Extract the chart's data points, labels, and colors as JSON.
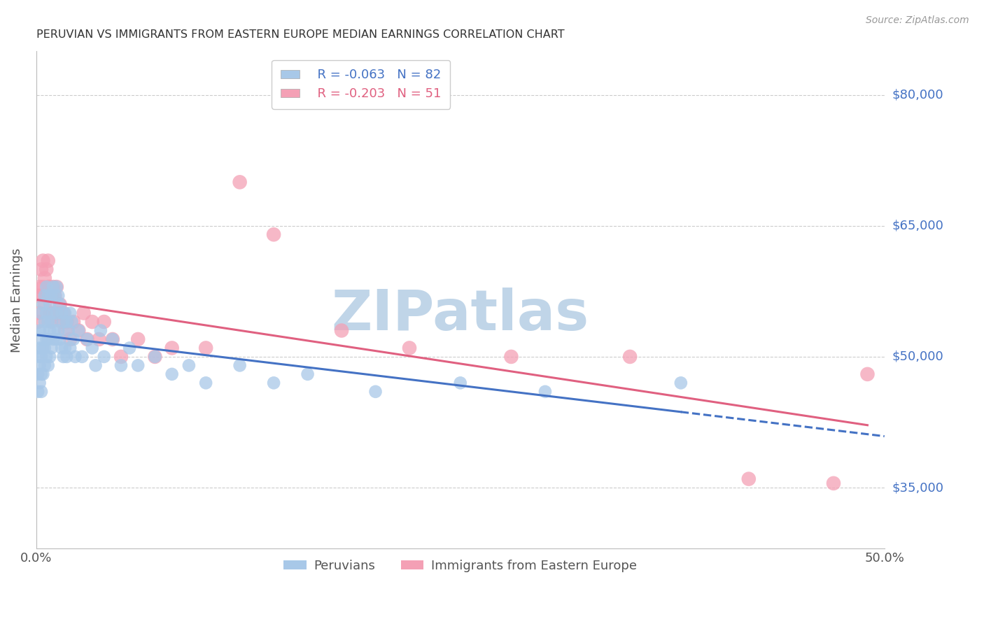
{
  "title": "PERUVIAN VS IMMIGRANTS FROM EASTERN EUROPE MEDIAN EARNINGS CORRELATION CHART",
  "source": "Source: ZipAtlas.com",
  "ylabel": "Median Earnings",
  "yticks": [
    35000,
    50000,
    65000,
    80000
  ],
  "ytick_labels": [
    "$35,000",
    "$50,000",
    "$65,000",
    "$80,000"
  ],
  "series": [
    {
      "name": "Peruvians",
      "R": -0.063,
      "N": 82,
      "color": "#a8c8e8",
      "line_color": "#4472c4",
      "x": [
        0.001,
        0.001,
        0.001,
        0.002,
        0.002,
        0.002,
        0.002,
        0.003,
        0.003,
        0.003,
        0.003,
        0.003,
        0.004,
        0.004,
        0.004,
        0.004,
        0.005,
        0.005,
        0.005,
        0.005,
        0.006,
        0.006,
        0.006,
        0.006,
        0.007,
        0.007,
        0.007,
        0.007,
        0.008,
        0.008,
        0.008,
        0.009,
        0.009,
        0.009,
        0.01,
        0.01,
        0.01,
        0.011,
        0.011,
        0.012,
        0.012,
        0.012,
        0.013,
        0.013,
        0.014,
        0.014,
        0.015,
        0.015,
        0.016,
        0.016,
        0.017,
        0.017,
        0.018,
        0.018,
        0.019,
        0.02,
        0.02,
        0.021,
        0.022,
        0.023,
        0.025,
        0.027,
        0.03,
        0.033,
        0.035,
        0.038,
        0.04,
        0.045,
        0.05,
        0.055,
        0.06,
        0.07,
        0.08,
        0.09,
        0.1,
        0.12,
        0.14,
        0.16,
        0.2,
        0.25,
        0.3,
        0.38
      ],
      "y": [
        50000,
        48000,
        46000,
        53000,
        51000,
        49000,
        47000,
        55000,
        52000,
        50000,
        48000,
        46000,
        56000,
        53000,
        51000,
        48000,
        57000,
        54000,
        51000,
        49000,
        58000,
        55000,
        52000,
        50000,
        57000,
        54000,
        52000,
        49000,
        56000,
        53000,
        50000,
        57000,
        54000,
        51000,
        58000,
        55000,
        52000,
        57000,
        53000,
        58000,
        55000,
        52000,
        57000,
        53000,
        56000,
        52000,
        55000,
        51000,
        54000,
        50000,
        55000,
        51000,
        54000,
        50000,
        53000,
        55000,
        51000,
        54000,
        52000,
        50000,
        53000,
        50000,
        52000,
        51000,
        49000,
        53000,
        50000,
        52000,
        49000,
        51000,
        49000,
        50000,
        48000,
        49000,
        47000,
        49000,
        47000,
        48000,
        46000,
        47000,
        46000,
        47000
      ]
    },
    {
      "name": "Immigrants from Eastern Europe",
      "R": -0.203,
      "N": 51,
      "color": "#f4a0b5",
      "line_color": "#e06080",
      "x": [
        0.001,
        0.001,
        0.002,
        0.002,
        0.003,
        0.003,
        0.004,
        0.004,
        0.005,
        0.005,
        0.006,
        0.006,
        0.007,
        0.007,
        0.008,
        0.008,
        0.009,
        0.009,
        0.01,
        0.01,
        0.011,
        0.012,
        0.013,
        0.014,
        0.015,
        0.016,
        0.017,
        0.018,
        0.02,
        0.022,
        0.025,
        0.028,
        0.03,
        0.033,
        0.037,
        0.04,
        0.045,
        0.05,
        0.06,
        0.07,
        0.08,
        0.1,
        0.12,
        0.14,
        0.18,
        0.22,
        0.28,
        0.35,
        0.42,
        0.47,
        0.49
      ],
      "y": [
        57000,
        54000,
        58000,
        55000,
        60000,
        57000,
        61000,
        58000,
        59000,
        56000,
        60000,
        57000,
        61000,
        58000,
        58000,
        55000,
        57000,
        54000,
        58000,
        55000,
        57000,
        58000,
        55000,
        56000,
        54000,
        55000,
        53000,
        54000,
        52000,
        54000,
        53000,
        55000,
        52000,
        54000,
        52000,
        54000,
        52000,
        50000,
        52000,
        50000,
        51000,
        51000,
        70000,
        64000,
        53000,
        51000,
        50000,
        50000,
        36000,
        35500,
        48000
      ]
    }
  ],
  "title_color": "#333333",
  "source_color": "#999999",
  "axis_label_color": "#4472c4",
  "ytick_color": "#4472c4",
  "xtick_color": "#555555",
  "grid_color": "#cccccc",
  "watermark": "ZIPatlas",
  "watermark_color": "#c0d5e8",
  "background_color": "#ffffff",
  "xlim": [
    0.0,
    0.5
  ],
  "ylim": [
    28000,
    85000
  ],
  "figsize": [
    14.06,
    8.92
  ]
}
